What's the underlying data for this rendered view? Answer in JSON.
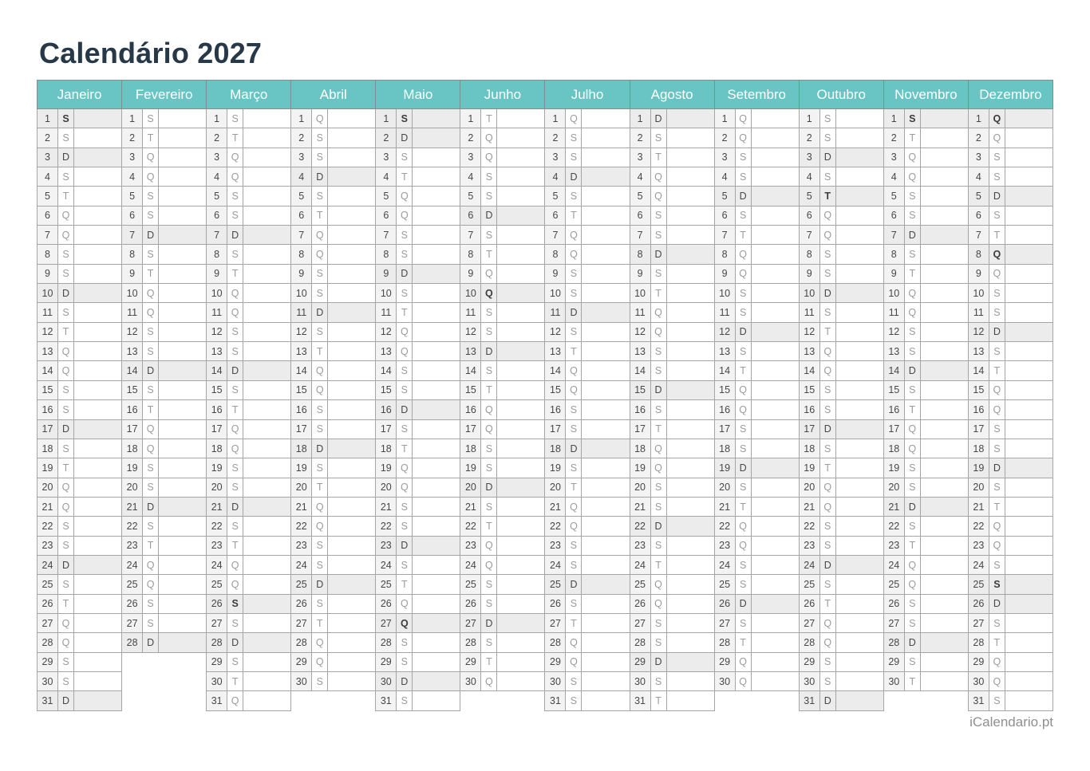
{
  "title": "Calendário 2027",
  "footer": "iCalendario.pt",
  "colors": {
    "header_bg": "#69c4c4",
    "header_border": "#7d9090",
    "header_text": "#ffffff",
    "grid_border": "#a5a5a5",
    "number_cell_bg": "#f3f3f3",
    "highlight_row_bg": "#ececec",
    "normal_letter": "#9b9b9b",
    "dark_letter": "#3c3c3c",
    "title_text": "#273848",
    "footer_text": "#8f8f8f"
  },
  "weekday_letter_map": {
    "monday": "S",
    "tuesday": "T",
    "wednesday": "Q",
    "thursday": "Q",
    "friday": "S",
    "saturday": "S",
    "sunday": "D"
  },
  "months": [
    {
      "name": "Janeiro",
      "days": 31,
      "letters": "SSDSTQQSSDSTQQSSDSTQQSSDSTQQSSD",
      "holidays": [
        1
      ]
    },
    {
      "name": "Fevereiro",
      "days": 28,
      "letters": "STQQSSDSTQQSSDSTQQSSDSTQQSSD",
      "holidays": []
    },
    {
      "name": "Março",
      "days": 31,
      "letters": "STQQSSDSTQQSSDSTQQSSDSTQQSSDSTQ",
      "holidays": [
        26
      ]
    },
    {
      "name": "Abril",
      "days": 30,
      "letters": "QSSDSTQQSSDSTQQSSDSTQQSSDSTQQS",
      "holidays": []
    },
    {
      "name": "Maio",
      "days": 31,
      "letters": "SDSTQQSSDSTQQSSDSTQQSSDSTQQSSDS",
      "holidays": [
        1,
        27
      ]
    },
    {
      "name": "Junho",
      "days": 30,
      "letters": "TQQSSDSTQQSSDSTQQSSDSTQQSSDSTQ",
      "holidays": [
        10
      ]
    },
    {
      "name": "Julho",
      "days": 31,
      "letters": "QSSDSTQQSSDSTQQSSDSTQQSSDSTQQSS",
      "holidays": []
    },
    {
      "name": "Agosto",
      "days": 31,
      "letters": "DSTQQSSDSTQQSSDSTQQSSDSTQQSSDST",
      "holidays": []
    },
    {
      "name": "Setembro",
      "days": 30,
      "letters": "QQSSDSTQQSSDSTQQSSDSTQQSSDSTQQ",
      "holidays": []
    },
    {
      "name": "Outubro",
      "days": 31,
      "letters": "SSDSTQQSSDSTQQSSDSTQQSSDSTQQSSD",
      "holidays": [
        5
      ]
    },
    {
      "name": "Novembro",
      "days": 30,
      "letters": "STQQSSDSTQQSSDSTQQSSDSTQQSSDST",
      "holidays": [
        1
      ]
    },
    {
      "name": "Dezembro",
      "days": 31,
      "letters": "QQSSDSTQQSSDSTQQSSDSTQQSSDSTQQS",
      "holidays": [
        1,
        8,
        25
      ]
    }
  ]
}
